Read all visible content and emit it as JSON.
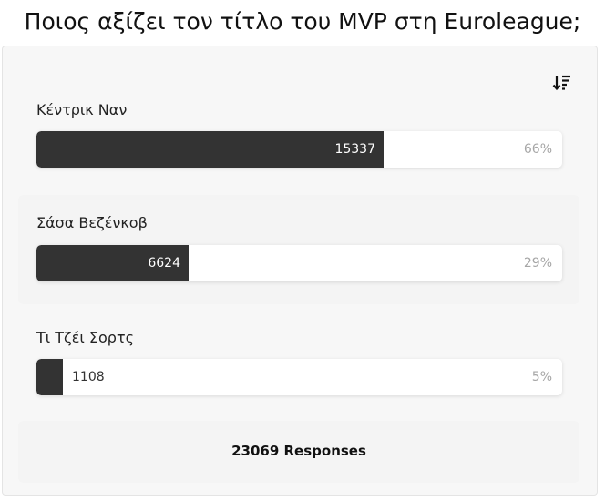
{
  "poll": {
    "title": "Ποιος αξίζει τον τίτλο του MVP στη Euroleague;",
    "sort_icon": "sort-descending-icon",
    "options": [
      {
        "label": "Κέντρικ Ναν",
        "count": "15337",
        "percent": "66%",
        "share": 0.66
      },
      {
        "label": "Σάσα Βεζένκοβ",
        "count": "6624",
        "percent": "29%",
        "share": 0.29
      },
      {
        "label": "Τι Τζέι Σορτς",
        "count": "1108",
        "percent": "5%",
        "share": 0.05
      }
    ],
    "total_count": "23069",
    "total_label": "Responses"
  },
  "colors": {
    "bar_fill": "#333333",
    "track": "#ffffff",
    "card_background": "#f7f7f7",
    "percent_text": "#a6a6a6"
  }
}
